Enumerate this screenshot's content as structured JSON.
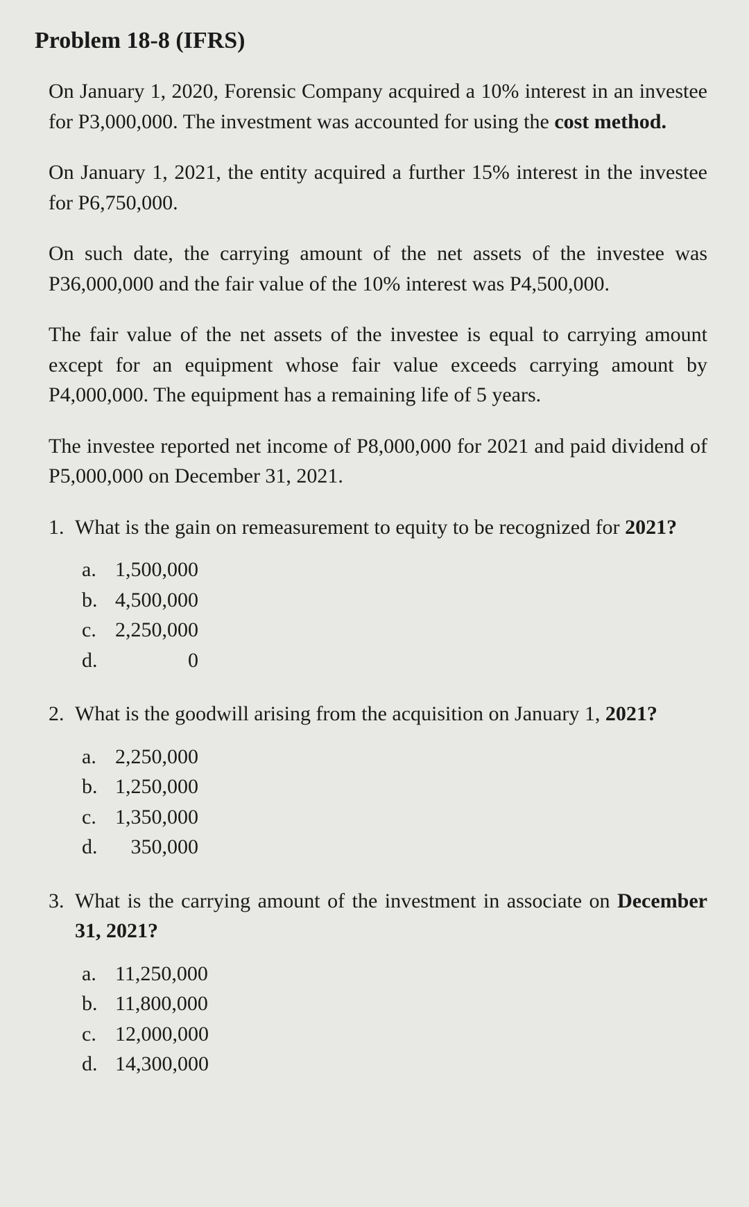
{
  "title": "Problem 18-8 (IFRS)",
  "paragraphs": {
    "p1_part1": "On January 1, 2020, Forensic Company acquired a 10% interest in an investee for P3,000,000. The investment was accounted for using the ",
    "p1_bold": "cost method.",
    "p2": "On January 1, 2021, the entity acquired a further 15% interest in the investee for P6,750,000.",
    "p3": "On such date, the carrying amount of the net assets of the investee was P36,000,000 and the fair value of the 10% interest was P4,500,000.",
    "p4": "The fair value of the net assets of the investee is equal to carrying amount except for an equipment whose fair value exceeds carrying amount by P4,000,000. The equipment has a remaining life of 5 years.",
    "p5": "The investee reported net income of P8,000,000 for 2021 and paid dividend of P5,000,000 on December 31, 2021."
  },
  "questions": [
    {
      "number": "1.",
      "text_part1": "What is the gain on remeasurement to equity to be recognized for ",
      "text_bold": "2021?",
      "options": [
        {
          "letter": "a.",
          "value": "1,500,000"
        },
        {
          "letter": "b.",
          "value": "4,500,000"
        },
        {
          "letter": "c.",
          "value": "2,250,000"
        },
        {
          "letter": "d.",
          "value": "              0"
        }
      ]
    },
    {
      "number": "2.",
      "text_part1": "What is the goodwill arising from the acquisition on January 1, ",
      "text_bold": "2021?",
      "options": [
        {
          "letter": "a.",
          "value": "2,250,000"
        },
        {
          "letter": "b.",
          "value": "1,250,000"
        },
        {
          "letter": "c.",
          "value": "1,350,000"
        },
        {
          "letter": "d.",
          "value": "   350,000"
        }
      ]
    },
    {
      "number": "3.",
      "text_part1": "What is the carrying amount of the investment in associate on ",
      "text_bold": "December 31, 2021?",
      "options": [
        {
          "letter": "a.",
          "value": "11,250,000"
        },
        {
          "letter": "b.",
          "value": "11,800,000"
        },
        {
          "letter": "c.",
          "value": "12,000,000"
        },
        {
          "letter": "d.",
          "value": "14,300,000"
        }
      ]
    }
  ]
}
